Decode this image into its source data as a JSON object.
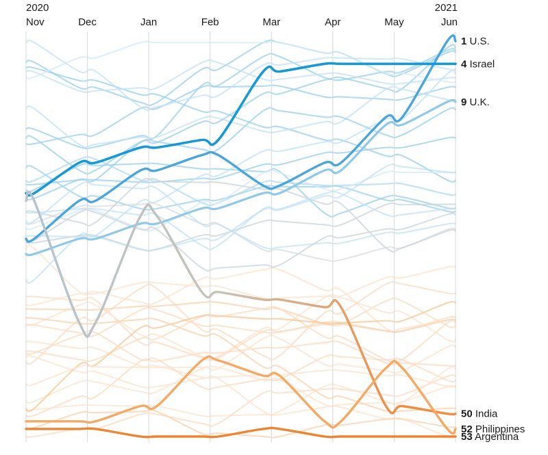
{
  "chart_data": {
    "type": "line",
    "variant": "bump_rank_chart",
    "x_categories": [
      "Nov",
      "Dec",
      "Jan",
      "Feb",
      "Mar",
      "Apr",
      "May",
      "Jun"
    ],
    "year_labels": {
      "start": "2020",
      "end": "2021"
    },
    "rank_min": 1,
    "rank_max": 53,
    "grid": true,
    "grid_color": "#d8d8d8",
    "text_color": "#1a1a1a",
    "background_color": "#ffffff",
    "legend_position": "right-edge-labels",
    "series": [
      {
        "name": "U.S.",
        "final_rank": 1,
        "ranks": [
          27,
          22,
          18,
          16,
          20,
          17,
          11,
          1
        ],
        "color": "#4aa6da",
        "width": 3.4
      },
      {
        "name": "Israel",
        "final_rank": 4,
        "ranks": [
          21,
          17,
          15,
          14,
          5,
          4,
          4,
          4
        ],
        "color": "#1899d6",
        "width": 3.6
      },
      {
        "name": "U.K.",
        "final_rank": 9,
        "ranks": [
          29,
          27,
          25,
          23,
          21,
          18,
          12,
          9
        ],
        "color": "#8fc9e9",
        "width": 3.2
      },
      {
        "name": "India",
        "final_rank": 50,
        "ranks": [
          22,
          38,
          24,
          34,
          35,
          36,
          49,
          50
        ],
        "gradient": [
          {
            "offset": "0%",
            "color": "#b3c4cf"
          },
          {
            "offset": "45%",
            "color": "#c6c2b7"
          },
          {
            "offset": "70%",
            "color": "#e2a372"
          },
          {
            "offset": "86%",
            "color": "#f08d40"
          },
          {
            "offset": "100%",
            "color": "#f08d40"
          }
        ],
        "width": 3.4
      },
      {
        "name": "Philippines",
        "final_rank": 52,
        "ranks": [
          51,
          51,
          49,
          43,
          45,
          51,
          44,
          52
        ],
        "color": "#f6a964",
        "width": 3.4
      },
      {
        "name": "Argentina",
        "final_rank": 53,
        "ranks": [
          52,
          52,
          53,
          53,
          52,
          53,
          53,
          53
        ],
        "color": "#ef8430",
        "width": 3.4
      }
    ],
    "background_lines": {
      "count": 42,
      "seed": 13,
      "opacity": 0.75,
      "width": 2.2,
      "blue_palette": [
        "#c3e1f4",
        "#addaf1",
        "#d5ebf8",
        "#9bd0ec"
      ],
      "gray_palette": [
        "#ccd5da",
        "#d8dde0"
      ],
      "orange_palette": [
        "#fce4cd",
        "#f9d3ae",
        "#fbdcc0",
        "#f7c794"
      ]
    }
  }
}
